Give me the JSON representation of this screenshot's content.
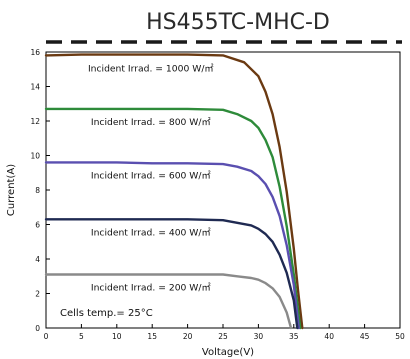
{
  "chart_data": {
    "type": "line",
    "title": "HS455TC-MHC-D",
    "xlabel": "Voltage(V)",
    "ylabel": "Current(A)",
    "xlim": [
      0,
      50
    ],
    "ylim": [
      0,
      16
    ],
    "x_ticks": [
      0,
      5,
      10,
      15,
      20,
      25,
      30,
      35,
      40,
      45,
      50
    ],
    "y_ticks": [
      0,
      2,
      4,
      6,
      8,
      10,
      12,
      14,
      16
    ],
    "grid": false,
    "annotation": "Cells temp.= 25°C",
    "series": [
      {
        "label": "Incident Irrad. = 1000 W/㎡",
        "color": "#6b3a12",
        "x": [
          0,
          5,
          10,
          15,
          20,
          25,
          28,
          30,
          31,
          32,
          33,
          34,
          35,
          35.6,
          36.2
        ],
        "y": [
          15.8,
          15.85,
          15.85,
          15.85,
          15.85,
          15.8,
          15.4,
          14.6,
          13.7,
          12.4,
          10.5,
          7.9,
          4.6,
          2.2,
          0
        ]
      },
      {
        "label": "Incident Irrad. = 800 W/㎡",
        "color": "#2e8b3a",
        "x": [
          0,
          5,
          10,
          15,
          20,
          25,
          27,
          29,
          30,
          31,
          32,
          33,
          34,
          35,
          35.9
        ],
        "y": [
          12.7,
          12.7,
          12.7,
          12.7,
          12.7,
          12.65,
          12.4,
          12.0,
          11.6,
          10.9,
          9.9,
          8.2,
          5.9,
          3.1,
          0
        ]
      },
      {
        "label": "Incident Irrad. = 600 W/㎡",
        "color": "#5a4fb0",
        "x": [
          0,
          5,
          10,
          15,
          20,
          25,
          27,
          29,
          30,
          31,
          32,
          33,
          34,
          35,
          35.7
        ],
        "y": [
          9.6,
          9.6,
          9.6,
          9.55,
          9.55,
          9.5,
          9.35,
          9.1,
          8.8,
          8.35,
          7.6,
          6.5,
          4.8,
          2.5,
          0
        ]
      },
      {
        "label": "Incident Irrad. = 400 W/㎡",
        "color": "#1f2a52",
        "x": [
          0,
          5,
          10,
          15,
          20,
          25,
          27,
          29,
          30,
          31,
          32,
          33,
          34,
          35,
          35.5
        ],
        "y": [
          6.3,
          6.3,
          6.3,
          6.3,
          6.3,
          6.25,
          6.1,
          5.95,
          5.75,
          5.45,
          5.0,
          4.25,
          3.2,
          1.6,
          0
        ]
      },
      {
        "label": "Incident Irrad. = 200 W/㎡",
        "color": "#8a8a8a",
        "x": [
          0,
          5,
          10,
          15,
          20,
          25,
          27,
          29,
          30,
          31,
          32,
          33,
          34,
          34.6
        ],
        "y": [
          3.1,
          3.1,
          3.1,
          3.1,
          3.1,
          3.1,
          3.0,
          2.9,
          2.8,
          2.6,
          2.3,
          1.8,
          0.9,
          0
        ]
      }
    ]
  }
}
